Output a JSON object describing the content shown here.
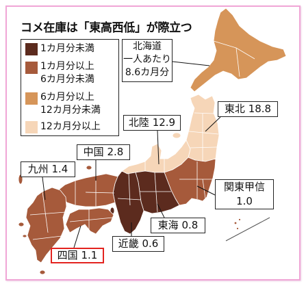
{
  "title": "コメ在庫は「東高西低」が際立つ",
  "legend": [
    {
      "color": "#5c2b1e",
      "lines": [
        "1カ月分未満"
      ]
    },
    {
      "color": "#a65a3b",
      "lines": [
        "1カ月分以上",
        "6カ月分未満"
      ]
    },
    {
      "color": "#d69559",
      "lines": [
        "6カ月分以上",
        "12カ月分未満"
      ]
    },
    {
      "color": "#f6d6b8",
      "lines": [
        "12カ月分以上"
      ]
    }
  ],
  "regions": {
    "hokkaido": {
      "name": "北海道",
      "prefix": "一人あたり",
      "value": "8.6",
      "unit": "カ月分",
      "category": 2
    },
    "tohoku": {
      "name": "東北",
      "value": "18.8",
      "category": 3
    },
    "hokuriku": {
      "name": "北陸",
      "value": "12.9",
      "category": 3
    },
    "kanto_koshin": {
      "name": "関東甲信",
      "value": "1.0",
      "category": 1
    },
    "tokai": {
      "name": "東海",
      "value": "0.8",
      "category": 0
    },
    "kinki": {
      "name": "近畿",
      "value": "0.6",
      "category": 0
    },
    "chugoku": {
      "name": "中国",
      "value": "2.8",
      "category": 1
    },
    "shikoku": {
      "name": "四国",
      "value": "1.1",
      "category": 1,
      "highlight_color": "#e3231f"
    },
    "kyushu": {
      "name": "九州",
      "value": "1.4",
      "category": 1
    }
  },
  "frame_color": "#f0a6d6"
}
